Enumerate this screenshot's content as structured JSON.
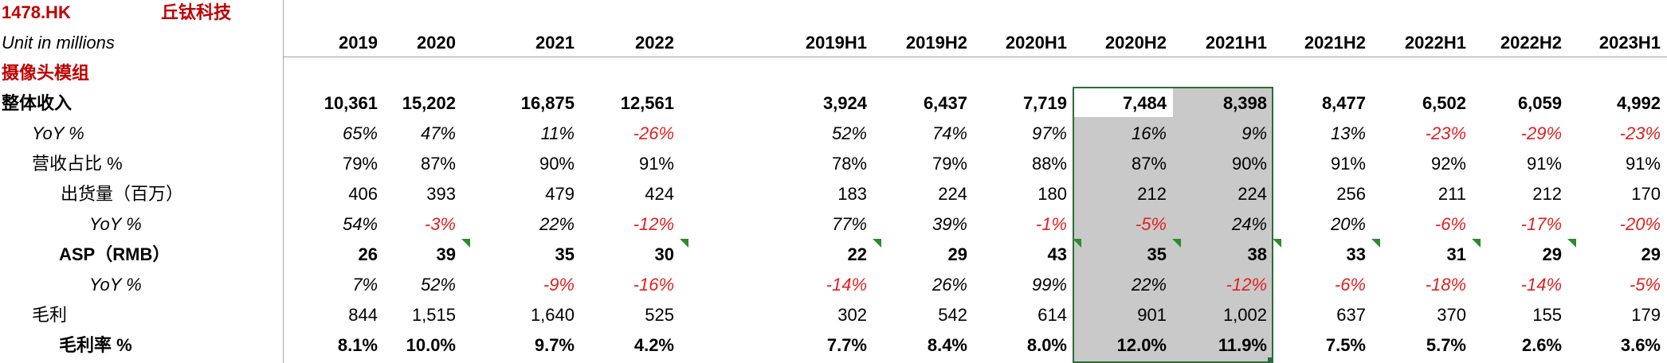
{
  "header": {
    "ticker": "1478.HK",
    "company": "丘钛科技",
    "unit": "Unit in millions",
    "section": "摄像头模组"
  },
  "columns": [
    "2019",
    "2020",
    "2021",
    "2022",
    "2019H1",
    "2019H2",
    "2020H1",
    "2020H2",
    "2021H1",
    "2021H2",
    "2022H1",
    "2022H2",
    "2023H1"
  ],
  "rows": [
    {
      "label": "整体收入",
      "values": [
        "10,361",
        "15,202",
        "16,875",
        "12,561",
        "3,924",
        "6,437",
        "7,719",
        "7,484",
        "8,398",
        "8,477",
        "6,502",
        "6,059",
        "4,992"
      ]
    },
    {
      "label": "YoY %",
      "values": [
        "65%",
        "47%",
        "11%",
        "-26%",
        "52%",
        "74%",
        "97%",
        "16%",
        "9%",
        "13%",
        "-23%",
        "-29%",
        "-23%"
      ]
    },
    {
      "label": "营收占比 %",
      "values": [
        "79%",
        "87%",
        "90%",
        "91%",
        "78%",
        "79%",
        "88%",
        "87%",
        "90%",
        "91%",
        "92%",
        "91%",
        "91%"
      ]
    },
    {
      "label": "出货量（百万）",
      "values": [
        "406",
        "393",
        "479",
        "424",
        "183",
        "224",
        "180",
        "212",
        "224",
        "256",
        "211",
        "212",
        "170"
      ]
    },
    {
      "label": "YoY %",
      "values": [
        "54%",
        "-3%",
        "22%",
        "-12%",
        "77%",
        "39%",
        "-1%",
        "-5%",
        "24%",
        "20%",
        "-6%",
        "-17%",
        "-20%"
      ]
    },
    {
      "label": "ASP（RMB）",
      "values": [
        "26",
        "39",
        "35",
        "30",
        "22",
        "29",
        "43",
        "35",
        "38",
        "33",
        "31",
        "29",
        "29"
      ]
    },
    {
      "label": "YoY %",
      "values": [
        "7%",
        "52%",
        "-9%",
        "-16%",
        "-14%",
        "26%",
        "99%",
        "22%",
        "-12%",
        "-6%",
        "-18%",
        "-14%",
        "-5%"
      ]
    },
    {
      "label": "毛利",
      "values": [
        "844",
        "1,515",
        "1,640",
        "525",
        "302",
        "542",
        "614",
        "901",
        "1,002",
        "637",
        "370",
        "155",
        "179"
      ]
    },
    {
      "label": "毛利率 %",
      "values": [
        "8.1%",
        "10.0%",
        "9.7%",
        "4.2%",
        "7.7%",
        "8.4%",
        "8.0%",
        "12.0%",
        "11.9%",
        "7.5%",
        "5.7%",
        "2.6%",
        "3.6%"
      ]
    }
  ],
  "colors": {
    "negative": "#e02020",
    "ticker": "#c00000",
    "selection_border": "#2e6b3a",
    "highlight_fill": "#c9c9c9",
    "comment_marker": "#2e8b2e"
  }
}
